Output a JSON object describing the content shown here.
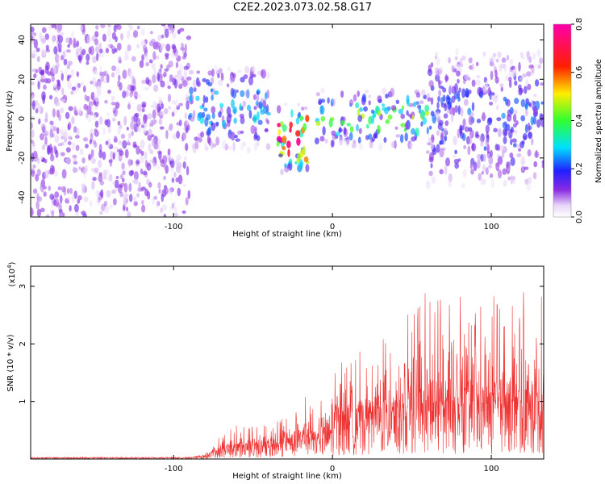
{
  "title": "C2E2.2023.073.02.58.G17",
  "chart_data": [
    {
      "type": "heatmap",
      "title": "C2E2.2023.073.02.58.G17",
      "xlabel": "Height of straight line (km)",
      "ylabel": "Frequency (Hz)",
      "xlim": [
        -190,
        133
      ],
      "ylim": [
        -50,
        48
      ],
      "xticks": [
        -100,
        0,
        100
      ],
      "xtick_labels": [
        "-100",
        "0",
        "100"
      ],
      "yticks": [
        -40,
        -20,
        0,
        20,
        40
      ],
      "ytick_labels": [
        "-40",
        "-20",
        "0",
        "20",
        "40"
      ],
      "colorbar": {
        "label": "Normalized spectral amplitude",
        "range": [
          0.0,
          0.8
        ],
        "ticks": [
          0.0,
          0.2,
          0.4,
          0.6,
          0.8
        ],
        "tick_labels": [
          "0.0",
          "0.2",
          "0.4",
          "0.6",
          "0.8"
        ],
        "colormap": "rainbow (white to purple, blue, cyan, green, yellow, red, magenta)"
      },
      "regions": [
        {
          "x_range": [
            -190,
            -90
          ],
          "freq_range": [
            -50,
            48
          ],
          "amplitude": 0.08,
          "description": "broadband low-amplitude noise"
        },
        {
          "x_range": [
            -90,
            -40
          ],
          "freq_center": 5,
          "freq_halfwidth": 15,
          "amplitude": 0.2
        },
        {
          "x_range": [
            -35,
            -15
          ],
          "freq_center": -10,
          "freq_halfwidth": 12,
          "amplitude": 0.55
        },
        {
          "x_range": [
            -10,
            60
          ],
          "freq_center": 0,
          "freq_halfwidth": 10,
          "amplitude": 0.3
        },
        {
          "x_range": [
            60,
            133
          ],
          "freq_center": 0,
          "freq_halfwidth": 25,
          "amplitude": 0.15
        }
      ]
    },
    {
      "type": "line",
      "xlabel": "Height of straight line (km)",
      "ylabel": "SNR (10 * v/v)",
      "y_multiplier": "(x10",
      "y_multiplier_exp": "4",
      "y_multiplier_close": ")",
      "color": "#ee3333",
      "xlim": [
        -190,
        133
      ],
      "ylim": [
        0,
        3.35
      ],
      "xticks": [
        -100,
        0,
        100
      ],
      "xtick_labels": [
        "-100",
        "0",
        "100"
      ],
      "yticks": [
        1,
        2,
        3
      ],
      "ytick_labels": [
        "1",
        "2",
        "3"
      ],
      "envelope": {
        "x": [
          -190,
          -90,
          -80,
          -75,
          -60,
          -40,
          -30,
          -20,
          -10,
          -5,
          0,
          10,
          20,
          30,
          40,
          50,
          60,
          70,
          80,
          90,
          100,
          110,
          120,
          133
        ],
        "y_peak": [
          0.03,
          0.03,
          0.1,
          0.3,
          0.6,
          0.6,
          0.8,
          1.2,
          0.9,
          1.1,
          1.6,
          1.8,
          1.9,
          2.2,
          2.3,
          2.6,
          3.0,
          2.8,
          3.2,
          2.6,
          2.8,
          3.0,
          2.9,
          2.9
        ],
        "y_median": [
          0.02,
          0.02,
          0.05,
          0.12,
          0.2,
          0.2,
          0.25,
          0.35,
          0.3,
          0.4,
          0.55,
          0.6,
          0.65,
          0.7,
          0.75,
          0.8,
          0.85,
          0.85,
          0.9,
          0.85,
          0.85,
          0.9,
          0.85,
          0.85
        ]
      }
    }
  ]
}
